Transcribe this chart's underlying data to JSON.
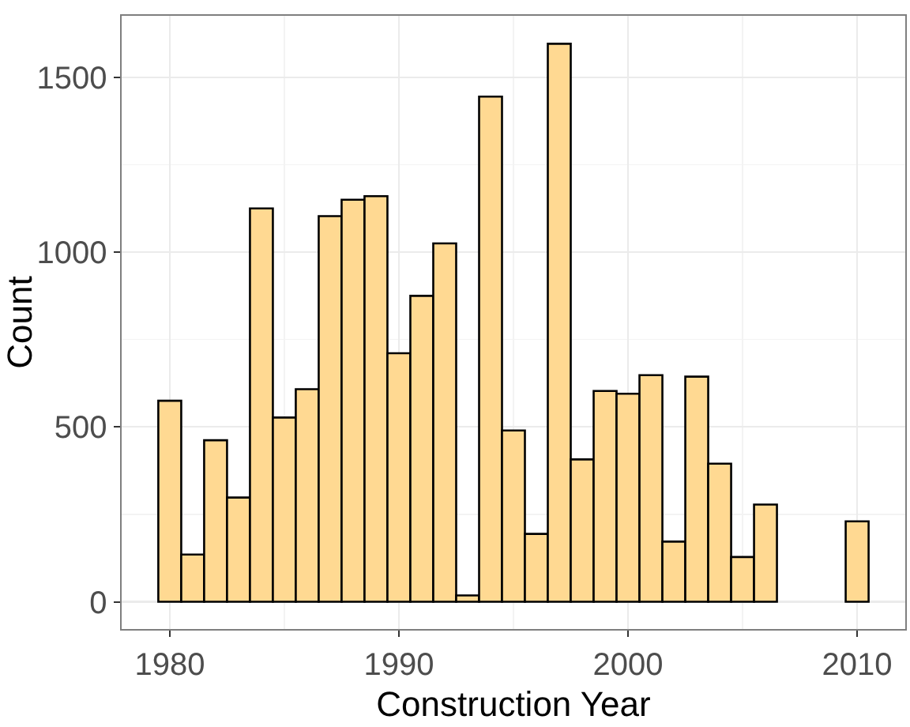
{
  "chart_data": {
    "type": "histogram",
    "xlabel": "Construction Year",
    "ylabel": "Count",
    "bins": [
      1979.5,
      1980.5,
      1981.5,
      1982.5,
      1983.5,
      1984.5,
      1985.5,
      1986.5,
      1987.5,
      1988.5,
      1989.5,
      1990.5,
      1991.5,
      1992.5,
      1993.5,
      1994.5,
      1995.5,
      1996.5,
      1997.5,
      1998.5,
      1999.5,
      2000.5,
      2001.5,
      2002.5,
      2003.5,
      2004.5,
      2005.5,
      2006.5,
      2007.5,
      2008.5,
      2009.5,
      2010.5
    ],
    "values": [
      575,
      135,
      462,
      298,
      1125,
      527,
      608,
      1103,
      1150,
      1160,
      711,
      875,
      1025,
      18,
      1445,
      490,
      194,
      1596,
      407,
      603,
      595,
      648,
      172,
      644,
      395,
      128,
      278,
      0,
      0,
      0,
      230
    ],
    "color": "#ffd992",
    "xlim": [
      1977.9,
      2012.1
    ],
    "xticks": [
      1980,
      1990,
      2000,
      2010
    ],
    "ylim": [
      -78,
      1676
    ],
    "yticks": [
      0,
      500,
      1000,
      1500
    ],
    "grid": true
  }
}
